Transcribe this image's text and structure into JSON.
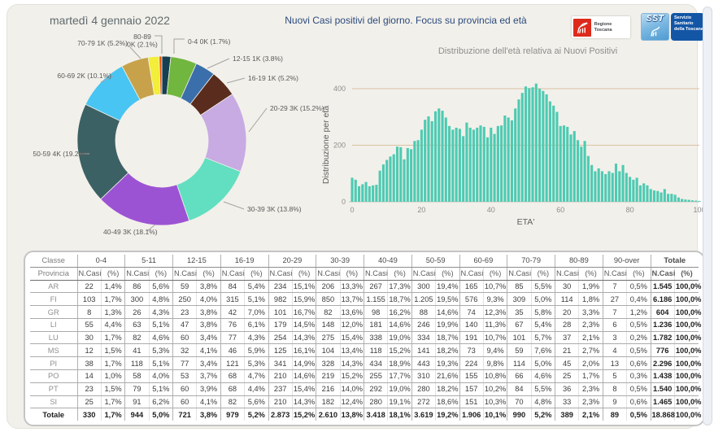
{
  "header": {
    "date": "martedì 4 gennaio 2022",
    "title": "Nuovi Casi positivi del giorno. Focus su provincia ed età",
    "logos": {
      "regione_label": "Regione Toscana",
      "sst_acronym": "SST",
      "sst_label": "Servizio Sanitario della Toscana"
    }
  },
  "chart_data": [
    {
      "type": "pie",
      "subtype": "donut",
      "categories": [
        "0-4",
        "5-11",
        "12-15",
        "16-19",
        "20-29",
        "30-39",
        "40-49",
        "50-59",
        "60-69",
        "70-79",
        "80-89",
        "90-over"
      ],
      "values": [
        1.7,
        5.0,
        3.8,
        5.2,
        15.2,
        13.8,
        18.1,
        19.2,
        10.1,
        5.2,
        2.1,
        0.5
      ],
      "labels": [
        "0-4 0K (1.7%)",
        null,
        "12-15 1K (3.8%)",
        "16-19 1K (5.2%)",
        "20-29 3K (15.2%)",
        "30-39 3K (13.8%)",
        "40-49 3K (18.1%)",
        "50-59 4K (19.2%)",
        "60-69 2K (10.1%)",
        "70-79 1K (5.2%)",
        "80-89\n0K (2.1%)",
        null
      ],
      "colors": [
        "#173f52",
        "#71b63e",
        "#3a6fab",
        "#5a2c1d",
        "#c7abe2",
        "#62dfc0",
        "#9c53d3",
        "#3c6165",
        "#48c5f2",
        "#c7a24a",
        "#f2ee3a",
        "#e35205"
      ],
      "legend_position": "outside-labels",
      "grid": false
    },
    {
      "type": "bar",
      "subtype": "histogram",
      "title": "Distribuzione dell'età relativa ai Nuovi Positivi",
      "xlabel": "ETA'",
      "ylabel": "Distribuzione per età",
      "x_min": 0,
      "x_max": 100,
      "xticks": [
        0,
        20,
        40,
        60,
        80,
        100
      ],
      "yticks": [
        0,
        200,
        400
      ],
      "ylim": [
        0,
        430
      ],
      "bar_color": "#4ecab2",
      "grid_color": "#d8c0a3",
      "axis_color": "#c6c2bb",
      "values": [
        85,
        78,
        55,
        62,
        70,
        55,
        58,
        60,
        110,
        132,
        148,
        160,
        168,
        195,
        193,
        150,
        190,
        186,
        215,
        218,
        255,
        290,
        302,
        285,
        320,
        330,
        322,
        298,
        268,
        255,
        262,
        258,
        232,
        280,
        262,
        255,
        262,
        270,
        265,
        228,
        262,
        240,
        268,
        270,
        305,
        298,
        288,
        330,
        362,
        385,
        408,
        402,
        405,
        418,
        400,
        392,
        380,
        355,
        340,
        318,
        268,
        270,
        265,
        238,
        250,
        218,
        195,
        215,
        162,
        130,
        108,
        118,
        108,
        98,
        108,
        102,
        135,
        108,
        130,
        102,
        88,
        78,
        85,
        58,
        65,
        58,
        45,
        40,
        38,
        33,
        45,
        28,
        28,
        25,
        15,
        10,
        8,
        7,
        5,
        4,
        3
      ]
    }
  ],
  "table": {
    "corner_top": "Classe",
    "corner_bottom": "Provincia",
    "value_headers": [
      "N.Casi",
      "(%)"
    ],
    "groups": [
      "0-4",
      "5-11",
      "12-15",
      "16-19",
      "20-29",
      "30-39",
      "40-49",
      "50-59",
      "60-69",
      "70-79",
      "80-89",
      "90-over",
      "Totale"
    ],
    "rows": [
      {
        "provincia": "AR",
        "cells": [
          "22",
          "1,4%",
          "86",
          "5,6%",
          "59",
          "3,8%",
          "84",
          "5,4%",
          "234",
          "15,1%",
          "206",
          "13,3%",
          "267",
          "17,3%",
          "300",
          "19,4%",
          "165",
          "10,7%",
          "85",
          "5,5%",
          "30",
          "1,9%",
          "7",
          "0,5%",
          "1.545",
          "100,0%"
        ]
      },
      {
        "provincia": "FI",
        "cells": [
          "103",
          "1,7%",
          "300",
          "4,8%",
          "250",
          "4,0%",
          "315",
          "5,1%",
          "982",
          "15,9%",
          "850",
          "13,7%",
          "1.155",
          "18,7%",
          "1.205",
          "19,5%",
          "576",
          "9,3%",
          "309",
          "5,0%",
          "114",
          "1,8%",
          "27",
          "0,4%",
          "6.186",
          "100,0%"
        ]
      },
      {
        "provincia": "GR",
        "cells": [
          "8",
          "1,3%",
          "26",
          "4,3%",
          "23",
          "3,8%",
          "42",
          "7,0%",
          "101",
          "16,7%",
          "82",
          "13,6%",
          "98",
          "16,2%",
          "88",
          "14,6%",
          "74",
          "12,3%",
          "35",
          "5,8%",
          "20",
          "3,3%",
          "7",
          "1,2%",
          "604",
          "100,0%"
        ]
      },
      {
        "provincia": "LI",
        "cells": [
          "55",
          "4,4%",
          "63",
          "5,1%",
          "47",
          "3,8%",
          "76",
          "6,1%",
          "179",
          "14,5%",
          "148",
          "12,0%",
          "181",
          "14,6%",
          "246",
          "19,9%",
          "140",
          "11,3%",
          "67",
          "5,4%",
          "28",
          "2,3%",
          "6",
          "0,5%",
          "1.236",
          "100,0%"
        ]
      },
      {
        "provincia": "LU",
        "cells": [
          "30",
          "1,7%",
          "82",
          "4,6%",
          "60",
          "3,4%",
          "77",
          "4,3%",
          "254",
          "14,3%",
          "275",
          "15,4%",
          "338",
          "19,0%",
          "334",
          "18,7%",
          "191",
          "10,7%",
          "101",
          "5,7%",
          "37",
          "2,1%",
          "3",
          "0,2%",
          "1.782",
          "100,0%"
        ]
      },
      {
        "provincia": "MS",
        "cells": [
          "12",
          "1,5%",
          "41",
          "5,3%",
          "32",
          "4,1%",
          "46",
          "5,9%",
          "125",
          "16,1%",
          "104",
          "13,4%",
          "118",
          "15,2%",
          "141",
          "18,2%",
          "73",
          "9,4%",
          "59",
          "7,6%",
          "21",
          "2,7%",
          "4",
          "0,5%",
          "776",
          "100,0%"
        ]
      },
      {
        "provincia": "PI",
        "cells": [
          "38",
          "1,7%",
          "118",
          "5,1%",
          "77",
          "3,4%",
          "121",
          "5,3%",
          "341",
          "14,9%",
          "328",
          "14,3%",
          "434",
          "18,9%",
          "443",
          "19,3%",
          "224",
          "9,8%",
          "114",
          "5,0%",
          "45",
          "2,0%",
          "13",
          "0,6%",
          "2.296",
          "100,0%"
        ]
      },
      {
        "provincia": "PO",
        "cells": [
          "14",
          "1,0%",
          "58",
          "4,0%",
          "53",
          "3,7%",
          "68",
          "4,7%",
          "210",
          "14,6%",
          "219",
          "15,2%",
          "255",
          "17,7%",
          "310",
          "21,6%",
          "155",
          "10,8%",
          "66",
          "4,6%",
          "25",
          "1,7%",
          "5",
          "0,3%",
          "1.438",
          "100,0%"
        ]
      },
      {
        "provincia": "PT",
        "cells": [
          "23",
          "1,5%",
          "79",
          "5,1%",
          "60",
          "3,9%",
          "68",
          "4,4%",
          "237",
          "15,4%",
          "216",
          "14,0%",
          "292",
          "19,0%",
          "280",
          "18,2%",
          "157",
          "10,2%",
          "84",
          "5,5%",
          "36",
          "2,3%",
          "8",
          "0,5%",
          "1.540",
          "100,0%"
        ]
      },
      {
        "provincia": "SI",
        "cells": [
          "25",
          "1,7%",
          "91",
          "6,2%",
          "60",
          "4,1%",
          "82",
          "5,6%",
          "210",
          "14,3%",
          "182",
          "12,4%",
          "280",
          "19,1%",
          "272",
          "18,6%",
          "151",
          "10,3%",
          "70",
          "4,8%",
          "33",
          "2,3%",
          "9",
          "0,6%",
          "1.465",
          "100,0%"
        ]
      }
    ],
    "total": {
      "provincia": "Totale",
      "cells": [
        "330",
        "1,7%",
        "944",
        "5,0%",
        "721",
        "3,8%",
        "979",
        "5,2%",
        "2.873",
        "15,2%",
        "2.610",
        "13,8%",
        "3.418",
        "18,1%",
        "3.619",
        "19,2%",
        "1.906",
        "10,1%",
        "990",
        "5,2%",
        "389",
        "2,1%",
        "89",
        "0,5%",
        "18.868",
        "100,0%"
      ]
    }
  }
}
